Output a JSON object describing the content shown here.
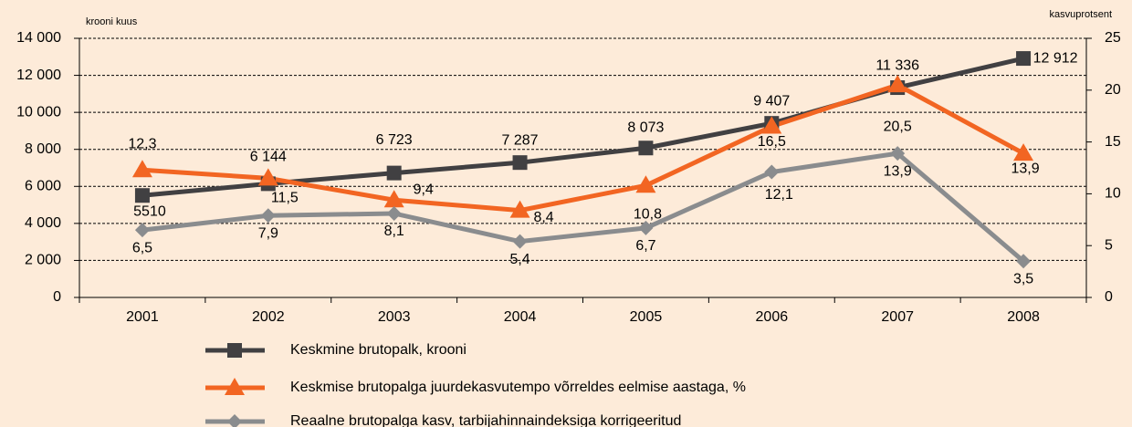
{
  "chart_data": {
    "type": "line",
    "y_axis_label": "krooni kuus",
    "y2_axis_label": "kasvuprotsent",
    "categories": [
      "2001",
      "2002",
      "2003",
      "2004",
      "2005",
      "2006",
      "2007",
      "2008"
    ],
    "ylim": [
      0,
      14000
    ],
    "yticks": [
      0,
      {
        "value": 2000,
        "label": "2 000"
      },
      {
        "value": 4000,
        "label": "4 000"
      },
      {
        "value": 6000,
        "label": "6 000"
      },
      {
        "value": 8000,
        "label": "8 000"
      },
      {
        "value": 10000,
        "label": "10 000"
      },
      {
        "value": 12000,
        "label": "12 000"
      },
      {
        "value": 14000,
        "label": "14 000"
      }
    ],
    "y2lim": [
      0,
      25
    ],
    "y2ticks": [
      0,
      5,
      10,
      15,
      20,
      25
    ],
    "grid": true,
    "series": [
      {
        "name": "Keskmine brutopalk, krooni",
        "color": "#414042",
        "marker": "square",
        "values": [
          5510,
          6144,
          6723,
          7287,
          8073,
          9407,
          11336,
          12912
        ],
        "value_labels": [
          "5510",
          "6 144",
          "6 723",
          "7 287",
          "8 073",
          "9 407",
          "11 336",
          "12 912"
        ]
      },
      {
        "name": "Keskmise brutopalga juurdekasvutempo võrreldes eelmise aastaga, %",
        "color": "#f26522",
        "marker": "triangle",
        "axis": "y2",
        "values": [
          12.3,
          11.5,
          9.4,
          8.4,
          10.8,
          16.5,
          20.5,
          13.9
        ],
        "value_labels": [
          "12,3",
          "11,5",
          "9,4",
          "8,4",
          "10,8",
          "16,5",
          "20,5",
          "13,9"
        ]
      },
      {
        "name": "Reaalne brutopalga kasv, tarbijahinnaindeksiga korrigeeritud",
        "color": "#8a8c8e",
        "marker": "diamond",
        "axis": "y2",
        "values": [
          6.5,
          7.9,
          8.1,
          5.4,
          6.7,
          12.1,
          13.9,
          3.5
        ],
        "value_labels": [
          "6,5",
          "7,9",
          "8,1",
          "5,4",
          "6,7",
          "12,1",
          "13,9",
          "3,5"
        ]
      }
    ]
  }
}
